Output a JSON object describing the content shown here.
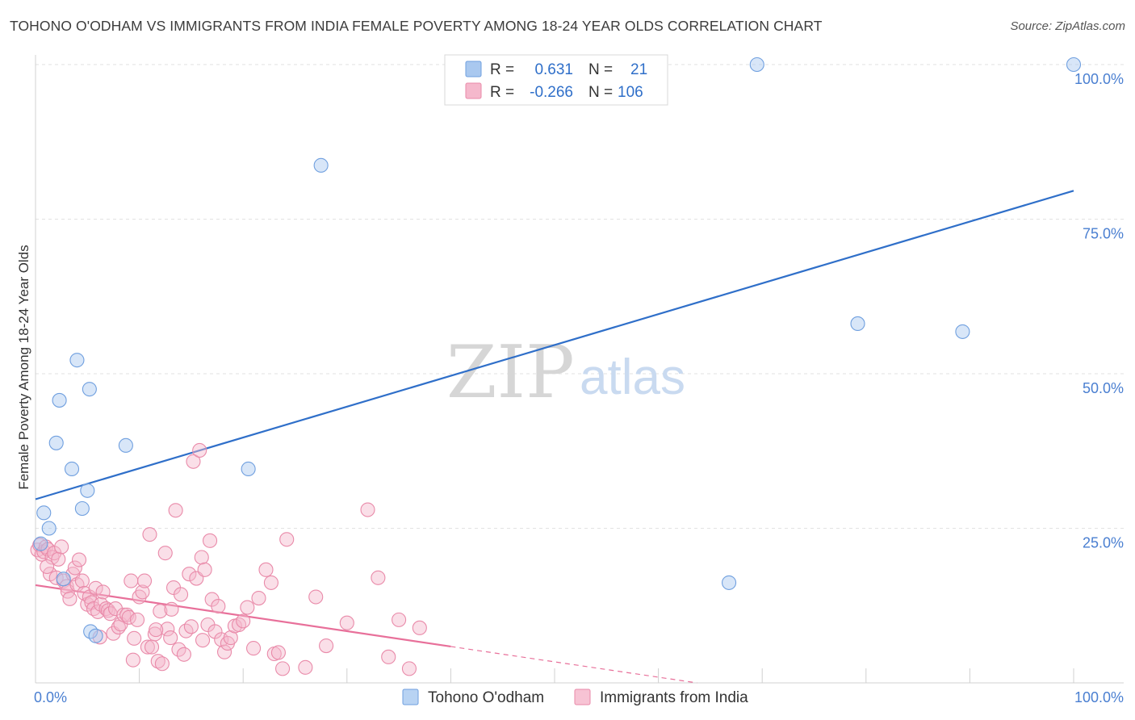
{
  "title": "TOHONO O'ODHAM VS IMMIGRANTS FROM INDIA FEMALE POVERTY AMONG 18-24 YEAR OLDS CORRELATION CHART",
  "source": "Source: ZipAtlas.com",
  "watermark": {
    "zip": "ZIP",
    "atlas": "atlas"
  },
  "legend": {
    "r_label": "R =",
    "n_label": "N =",
    "rows": [
      {
        "r": "0.631",
        "n": "21",
        "color": "#a9c8ef"
      },
      {
        "r": "-0.266",
        "n": "106",
        "color": "#f5b8cc"
      }
    ]
  },
  "bottom_legend": [
    {
      "label": "Tohono O'odham",
      "color": "#b8d3f3"
    },
    {
      "label": "Immigrants from India",
      "color": "#f7c3d4"
    }
  ],
  "chart_data": {
    "type": "scatter",
    "title": "TOHONO O'ODHAM VS IMMIGRANTS FROM INDIA FEMALE POVERTY AMONG 18-24 YEAR OLDS CORRELATION CHART",
    "xlabel": "",
    "ylabel": "Female Poverty Among 18-24 Year Olds",
    "xlim": [
      0,
      100
    ],
    "ylim": [
      0,
      100
    ],
    "x_tick_labels": [
      "0.0%",
      "100.0%"
    ],
    "y_ticks": [
      {
        "value": 25,
        "label": "25.0%"
      },
      {
        "value": 50,
        "label": "50.0%"
      },
      {
        "value": 75,
        "label": "75.0%"
      },
      {
        "value": 100,
        "label": "100.0%"
      }
    ],
    "grid": true,
    "legend_position": "top-center",
    "series": [
      {
        "name": "Tohono O'odham",
        "color": "#a9c8ef",
        "stroke": "#6f9fdf",
        "R": 0.631,
        "N": 21,
        "trend": {
          "x0": 0,
          "y0": 29.7,
          "x1": 100,
          "y1": 79.6,
          "color": "#2f6fc9",
          "dashed_from": null
        },
        "points": [
          [
            0.5,
            22.5
          ],
          [
            0.8,
            27.5
          ],
          [
            1.3,
            25
          ],
          [
            2.0,
            38.8
          ],
          [
            2.3,
            45.7
          ],
          [
            2.7,
            16.8
          ],
          [
            3.5,
            34.6
          ],
          [
            4.0,
            52.2
          ],
          [
            4.5,
            28.2
          ],
          [
            5.0,
            31.1
          ],
          [
            5.2,
            47.5
          ],
          [
            5.3,
            8.3
          ],
          [
            5.8,
            7.6
          ],
          [
            8.7,
            38.4
          ],
          [
            20.5,
            34.6
          ],
          [
            27.5,
            83.7
          ],
          [
            66.8,
            16.2
          ],
          [
            69.5,
            100
          ],
          [
            79.2,
            58.1
          ],
          [
            89.3,
            56.8
          ],
          [
            100,
            100
          ]
        ]
      },
      {
        "name": "Immigrants from India",
        "color": "#f5b8cc",
        "stroke": "#e98aa9",
        "R": -0.266,
        "N": 106,
        "trend": {
          "x0": 0,
          "y0": 15.8,
          "x1": 100,
          "y1": -9.0,
          "color": "#e8709a",
          "dashed_from": 40
        },
        "points": [
          [
            0.2,
            21.5
          ],
          [
            0.4,
            22.3
          ],
          [
            0.6,
            20.8
          ],
          [
            0.8,
            21.2
          ],
          [
            1.0,
            22.0
          ],
          [
            1.2,
            21.6
          ],
          [
            1.4,
            17.6
          ],
          [
            1.6,
            20.3
          ],
          [
            1.8,
            21.0
          ],
          [
            2.0,
            17.0
          ],
          [
            2.2,
            20.0
          ],
          [
            2.5,
            22.0
          ],
          [
            2.7,
            16.5
          ],
          [
            3.0,
            15.6
          ],
          [
            3.1,
            14.8
          ],
          [
            3.3,
            13.6
          ],
          [
            3.6,
            17.6
          ],
          [
            3.8,
            18.6
          ],
          [
            4.0,
            15.9
          ],
          [
            4.2,
            19.9
          ],
          [
            4.5,
            16.5
          ],
          [
            4.7,
            14.5
          ],
          [
            5.0,
            12.7
          ],
          [
            5.2,
            13.9
          ],
          [
            5.4,
            13.0
          ],
          [
            5.6,
            12.0
          ],
          [
            5.8,
            15.3
          ],
          [
            6.0,
            11.5
          ],
          [
            6.3,
            12.7
          ],
          [
            6.5,
            14.7
          ],
          [
            6.8,
            12.0
          ],
          [
            7.0,
            11.7
          ],
          [
            7.2,
            11.2
          ],
          [
            7.5,
            8.0
          ],
          [
            7.7,
            12.0
          ],
          [
            8.0,
            9.0
          ],
          [
            8.2,
            9.5
          ],
          [
            8.5,
            11.0
          ],
          [
            8.8,
            11.0
          ],
          [
            9.0,
            10.6
          ],
          [
            9.2,
            16.5
          ],
          [
            9.5,
            7.2
          ],
          [
            9.8,
            10.2
          ],
          [
            10.0,
            13.9
          ],
          [
            10.3,
            14.7
          ],
          [
            10.5,
            16.5
          ],
          [
            10.8,
            5.8
          ],
          [
            11.0,
            24.0
          ],
          [
            11.2,
            5.8
          ],
          [
            11.5,
            7.9
          ],
          [
            11.8,
            3.5
          ],
          [
            12.0,
            11.6
          ],
          [
            12.2,
            3.1
          ],
          [
            12.5,
            21.0
          ],
          [
            12.7,
            8.7
          ],
          [
            13.0,
            7.3
          ],
          [
            13.3,
            15.4
          ],
          [
            13.5,
            27.9
          ],
          [
            13.8,
            5.4
          ],
          [
            14.0,
            14.3
          ],
          [
            14.5,
            8.4
          ],
          [
            14.8,
            17.6
          ],
          [
            15.0,
            9.1
          ],
          [
            15.2,
            35.8
          ],
          [
            15.5,
            16.9
          ],
          [
            15.8,
            37.6
          ],
          [
            16.0,
            20.3
          ],
          [
            16.3,
            18.3
          ],
          [
            16.6,
            9.4
          ],
          [
            16.8,
            23.0
          ],
          [
            17.0,
            13.5
          ],
          [
            17.3,
            8.3
          ],
          [
            17.6,
            12.4
          ],
          [
            17.9,
            7.0
          ],
          [
            18.2,
            5.0
          ],
          [
            18.5,
            6.4
          ],
          [
            18.8,
            7.3
          ],
          [
            19.2,
            9.2
          ],
          [
            19.6,
            9.4
          ],
          [
            20.0,
            10.0
          ],
          [
            20.4,
            12.2
          ],
          [
            21.5,
            13.7
          ],
          [
            22.2,
            18.3
          ],
          [
            22.7,
            16.2
          ],
          [
            23.0,
            4.7
          ],
          [
            23.4,
            4.9
          ],
          [
            23.8,
            2.3
          ],
          [
            24.2,
            23.2
          ],
          [
            26.0,
            2.5
          ],
          [
            27.0,
            13.9
          ],
          [
            28.0,
            6.0
          ],
          [
            30.0,
            9.7
          ],
          [
            32.0,
            28.0
          ],
          [
            33.0,
            17.0
          ],
          [
            34.0,
            4.2
          ],
          [
            35.0,
            10.2
          ],
          [
            36.0,
            2.3
          ],
          [
            37.0,
            8.9
          ],
          [
            6.2,
            7.4
          ],
          [
            9.4,
            3.7
          ],
          [
            11.6,
            8.6
          ],
          [
            13.1,
            11.9
          ],
          [
            14.3,
            4.6
          ],
          [
            16.1,
            6.9
          ],
          [
            21.0,
            5.6
          ],
          [
            1.1,
            18.8
          ]
        ]
      }
    ]
  }
}
